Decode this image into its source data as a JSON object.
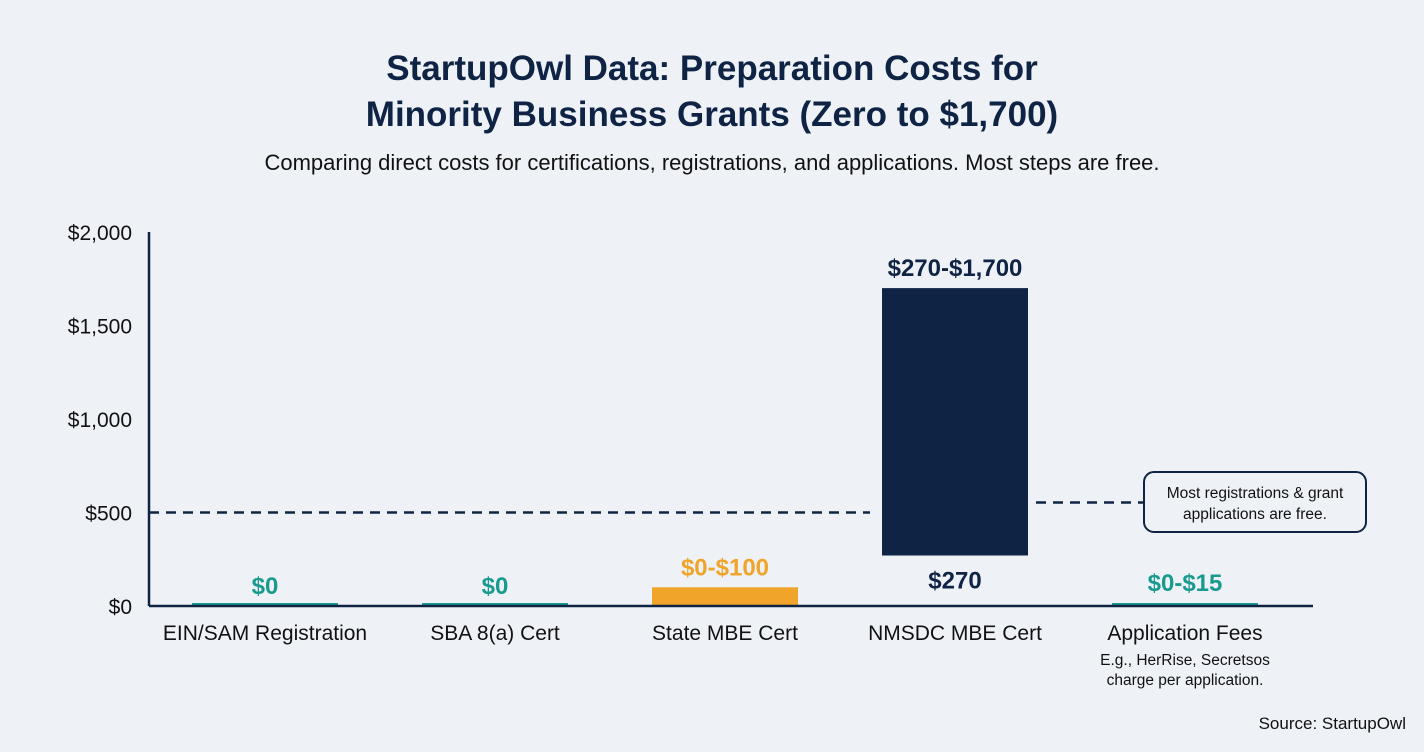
{
  "title_line1": "StartupOwl Data: Preparation Costs for",
  "title_line2": "Minority Business Grants (Zero to $1,700)",
  "subtitle": "Comparing direct costs for certifications, registrations, and applications. Most steps are free.",
  "source": "Source: StartupOwl",
  "colors": {
    "navy": "#0f2444",
    "teal": "#1a9a8f",
    "orange": "#f0a42a",
    "background": "#eef2f7"
  },
  "chart_data": {
    "type": "bar",
    "title": "StartupOwl Data: Preparation Costs for Minority Business Grants (Zero to $1,700)",
    "ylim": [
      0,
      2000
    ],
    "yticks": [
      0,
      500,
      1000,
      1500,
      2000
    ],
    "ytick_labels": [
      "$0",
      "$500",
      "$1,000",
      "$1,500",
      "$2,000"
    ],
    "grid": false,
    "categories": [
      "EIN/SAM Registration",
      "SBA 8(a) Cert",
      "State MBE Cert",
      "NMSDC MBE Cert",
      "Application Fees"
    ],
    "bars": [
      {
        "category": "EIN/SAM Registration",
        "low": 0,
        "high": 0,
        "label": "$0",
        "color": "#1a9a8f"
      },
      {
        "category": "SBA 8(a) Cert",
        "low": 0,
        "high": 0,
        "label": "$0",
        "color": "#1a9a8f"
      },
      {
        "category": "State MBE Cert",
        "low": 0,
        "high": 100,
        "label": "$0-$100",
        "color": "#f0a42a"
      },
      {
        "category": "NMSDC MBE Cert",
        "low": 270,
        "high": 1700,
        "label": "$270-$1,700",
        "low_label": "$270",
        "color": "#0f2444"
      },
      {
        "category": "Application Fees",
        "low": 0,
        "high": 15,
        "label": "$0-$15",
        "color": "#1a9a8f",
        "note": [
          "E.g., HerRise, Secretsos",
          "charge per application."
        ]
      }
    ],
    "reference_line": {
      "value": 500,
      "style": "dashed"
    },
    "annotation": [
      "Most registrations & grant",
      "applications are free."
    ]
  }
}
